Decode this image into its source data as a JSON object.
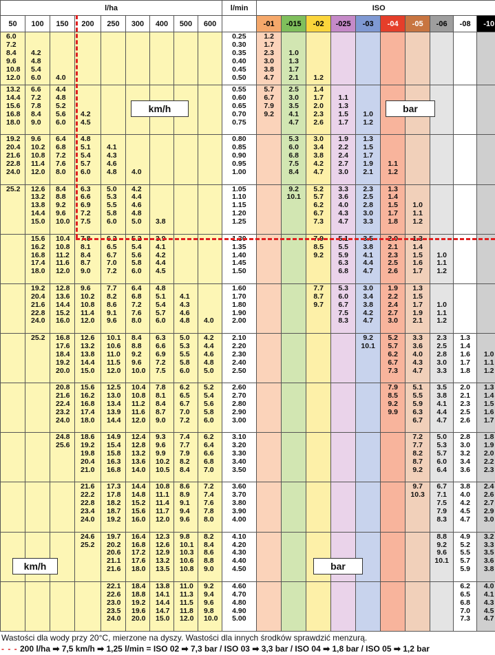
{
  "headers": {
    "lha_title": "l/ha",
    "lmin_title": "l/min",
    "iso_title": "ISO"
  },
  "lha_cols": [
    "50",
    "100",
    "150",
    "200",
    "250",
    "300",
    "400",
    "500",
    "600"
  ],
  "iso_cols": [
    "-01",
    "-015",
    "-02",
    "-025",
    "-03",
    "-04",
    "-05",
    "-06",
    "-08",
    "-10"
  ],
  "groups": [
    {
      "kmh": [
        [
          "6.0",
          "7.2",
          "8.4",
          "9.6",
          "10.8",
          "12.0"
        ],
        [
          "",
          "",
          "4.2",
          "4.8",
          "5.4",
          "6.0"
        ],
        [
          "",
          "",
          "",
          "",
          "",
          "4.0"
        ],
        [],
        [],
        [],
        [],
        [],
        []
      ],
      "lmin": [
        "0.25",
        "0.30",
        "0.35",
        "0.40",
        "0.45",
        "0.50"
      ],
      "iso": [
        [
          "1.2",
          "1.7",
          "2.3",
          "3.0",
          "3.8",
          "4.7"
        ],
        [
          "",
          "",
          "1.0",
          "1.3",
          "1.7",
          "2.1"
        ],
        [
          "",
          "",
          "",
          "",
          "",
          "1.2"
        ],
        [],
        [],
        [],
        [],
        [],
        [],
        []
      ]
    },
    {
      "kmh": [
        [
          "13.2",
          "14.4",
          "15.6",
          "16.8",
          "18.0"
        ],
        [
          "6.6",
          "7.2",
          "7.8",
          "8.4",
          "9.0"
        ],
        [
          "4.4",
          "4.8",
          "5.2",
          "5.6",
          "6.0"
        ],
        [
          "",
          "",
          "",
          "4.2",
          "4.5"
        ],
        [],
        [],
        [],
        [],
        []
      ],
      "lmin": [
        "0.55",
        "0.60",
        "0.65",
        "0.70",
        "0.75"
      ],
      "iso": [
        [
          "5.7",
          "6.7",
          "7.9",
          "9.2",
          ""
        ],
        [
          "2.5",
          "3.0",
          "3.5",
          "4.1",
          "4.7"
        ],
        [
          "1.4",
          "1.7",
          "2.0",
          "2.3",
          "2.6"
        ],
        [
          "",
          "1.1",
          "1.3",
          "1.5",
          "1.7"
        ],
        [
          "",
          "",
          "",
          "1.0",
          "1.2"
        ],
        [],
        [],
        [],
        [],
        []
      ]
    },
    {
      "kmh": [
        [
          "19.2",
          "20.4",
          "21.6",
          "22.8",
          "24.0"
        ],
        [
          "9.6",
          "10.2",
          "10.8",
          "11.4",
          "12.0"
        ],
        [
          "6.4",
          "6.8",
          "7.2",
          "7.6",
          "8.0"
        ],
        [
          "4.8",
          "5.1",
          "5.4",
          "5.7",
          "6.0"
        ],
        [
          "",
          "4.1",
          "4.3",
          "4.6",
          "4.8"
        ],
        [
          "",
          "",
          "",
          "",
          "4.0"
        ],
        [],
        [],
        []
      ],
      "lmin": [
        "0.80",
        "0.85",
        "0.90",
        "0.95",
        "1.00"
      ],
      "iso": [
        [],
        [
          "5.3",
          "6.0",
          "6.8",
          "7.5",
          "8.4"
        ],
        [
          "3.0",
          "3.4",
          "3.8",
          "4.2",
          "4.7"
        ],
        [
          "1.9",
          "2.2",
          "2.4",
          "2.7",
          "3.0"
        ],
        [
          "1.3",
          "1.5",
          "1.7",
          "1.9",
          "2.1"
        ],
        [
          "",
          "",
          "",
          "1.1",
          "1.2"
        ],
        [],
        [],
        [],
        []
      ]
    },
    {
      "kmh": [
        [
          "25.2",
          "",
          "",
          "",
          ""
        ],
        [
          "12.6",
          "13.2",
          "13.8",
          "14.4",
          "15.0"
        ],
        [
          "8.4",
          "8.8",
          "9.2",
          "9.6",
          "10.0"
        ],
        [
          "6.3",
          "6.6",
          "6.9",
          "7.2",
          "7.5"
        ],
        [
          "5.0",
          "5.3",
          "5.5",
          "5.8",
          "6.0"
        ],
        [
          "4.2",
          "4.4",
          "4.6",
          "4.8",
          "5.0"
        ],
        [
          "",
          "",
          "",
          "",
          "3.8"
        ],
        [],
        []
      ],
      "lmin": [
        "1.05",
        "1.10",
        "1.15",
        "1.20",
        "1.25"
      ],
      "iso": [
        [],
        [
          "9.2",
          "10.1",
          "",
          "",
          ""
        ],
        [
          "5.2",
          "5.7",
          "6.2",
          "6.7",
          "7.3"
        ],
        [
          "3.3",
          "3.6",
          "4.0",
          "4.3",
          "4.7"
        ],
        [
          "2.3",
          "2.5",
          "2.8",
          "3.0",
          "3.3"
        ],
        [
          "1.3",
          "1.4",
          "1.5",
          "1.7",
          "1.8"
        ],
        [
          "",
          "",
          "1.0",
          "1.1",
          "1.2"
        ],
        [],
        [],
        []
      ]
    },
    {
      "kmh": [
        [],
        [
          "15.6",
          "16.2",
          "16.8",
          "17.4",
          "18.0"
        ],
        [
          "10.4",
          "10.8",
          "11.2",
          "11.6",
          "12.0"
        ],
        [
          "7.8",
          "8.1",
          "8.4",
          "8.7",
          "9.0"
        ],
        [
          "6.2",
          "6.5",
          "6.7",
          "7.0",
          "7.2"
        ],
        [
          "5.2",
          "5.4",
          "5.6",
          "5.8",
          "6.0"
        ],
        [
          "3.9",
          "4.1",
          "4.2",
          "4.4",
          "4.5"
        ],
        [],
        []
      ],
      "lmin": [
        "1.30",
        "1.35",
        "1.40",
        "1.45",
        "1.50"
      ],
      "iso": [
        [],
        [],
        [
          "7.9",
          "8.5",
          "9.2",
          "",
          ""
        ],
        [
          "5.1",
          "5.5",
          "5.9",
          "6.3",
          "6.8"
        ],
        [
          "3.5",
          "3.8",
          "4.1",
          "4.4",
          "4.7"
        ],
        [
          "2.0",
          "2.1",
          "2.3",
          "2.5",
          "2.6"
        ],
        [
          "1.3",
          "1.4",
          "1.5",
          "1.6",
          "1.7"
        ],
        [
          "",
          "",
          "1.0",
          "1.1",
          "1.2"
        ],
        [],
        []
      ]
    },
    {
      "kmh": [
        [],
        [
          "19.2",
          "20.4",
          "21.6",
          "22.8",
          "24.0"
        ],
        [
          "12.8",
          "13.6",
          "14.4",
          "15.2",
          "16.0"
        ],
        [
          "9.6",
          "10.2",
          "10.8",
          "11.4",
          "12.0"
        ],
        [
          "7.7",
          "8.2",
          "8.6",
          "9.1",
          "9.6"
        ],
        [
          "6.4",
          "6.8",
          "7.2",
          "7.6",
          "8.0"
        ],
        [
          "4.8",
          "5.1",
          "5.4",
          "5.7",
          "6.0"
        ],
        [
          "",
          "4.1",
          "4.3",
          "4.6",
          "4.8"
        ],
        [
          "",
          "",
          "",
          "",
          "4.0"
        ]
      ],
      "lmin": [
        "1.60",
        "1.70",
        "1.80",
        "1.90",
        "2.00"
      ],
      "iso": [
        [],
        [],
        [
          "7.7",
          "8.7",
          "9.7",
          "",
          ""
        ],
        [
          "5.3",
          "6.0",
          "6.7",
          "7.5",
          "8.3"
        ],
        [
          "3.0",
          "3.4",
          "3.8",
          "4.2",
          "4.7"
        ],
        [
          "1.9",
          "2.2",
          "2.4",
          "2.7",
          "3.0"
        ],
        [
          "1.3",
          "1.5",
          "1.7",
          "1.9",
          "2.1"
        ],
        [
          "",
          "",
          "1.0",
          "1.1",
          "1.2"
        ],
        [],
        []
      ]
    },
    {
      "kmh": [
        [],
        [
          "25.2",
          "",
          "",
          "",
          ""
        ],
        [
          "16.8",
          "17.6",
          "18.4",
          "19.2",
          "20.0"
        ],
        [
          "12.6",
          "13.2",
          "13.8",
          "14.4",
          "15.0"
        ],
        [
          "10.1",
          "10.6",
          "11.0",
          "11.5",
          "12.0"
        ],
        [
          "8.4",
          "8.8",
          "9.2",
          "9.6",
          "10.0"
        ],
        [
          "6.3",
          "6.6",
          "6.9",
          "7.2",
          "7.5"
        ],
        [
          "5.0",
          "5.3",
          "5.5",
          "5.8",
          "6.0"
        ],
        [
          "4.2",
          "4.4",
          "4.6",
          "4.8",
          "5.0"
        ]
      ],
      "lmin": [
        "2.10",
        "2.20",
        "2.30",
        "2.40",
        "2.50"
      ],
      "iso": [
        [],
        [],
        [],
        [],
        [
          "9.2",
          "10.1",
          "",
          "",
          ""
        ],
        [
          "5.2",
          "5.7",
          "6.2",
          "6.7",
          "7.3"
        ],
        [
          "3.3",
          "3.6",
          "4.0",
          "4.3",
          "4.7"
        ],
        [
          "2.3",
          "2.5",
          "2.8",
          "3.0",
          "3.3"
        ],
        [
          "1.3",
          "1.4",
          "1.6",
          "1.7",
          "1.8"
        ],
        [
          "",
          "",
          "1.0",
          "1.1",
          "1.2"
        ]
      ]
    },
    {
      "kmh": [
        [],
        [],
        [
          "20.8",
          "21.6",
          "22.4",
          "23.2",
          "24.0"
        ],
        [
          "15.6",
          "16.2",
          "16.8",
          "17.4",
          "18.0"
        ],
        [
          "12.5",
          "13.0",
          "13.4",
          "13.9",
          "14.4"
        ],
        [
          "10.4",
          "10.8",
          "11.2",
          "11.6",
          "12.0"
        ],
        [
          "7.8",
          "8.1",
          "8.4",
          "8.7",
          "9.0"
        ],
        [
          "6.2",
          "6.5",
          "6.7",
          "7.0",
          "7.2"
        ],
        [
          "5.2",
          "5.4",
          "5.6",
          "5.8",
          "6.0"
        ]
      ],
      "lmin": [
        "2.60",
        "2.70",
        "2.80",
        "2.90",
        "3.00"
      ],
      "iso": [
        [],
        [],
        [],
        [],
        [],
        [
          "7.9",
          "8.5",
          "9.2",
          "9.9",
          ""
        ],
        [
          "5.1",
          "5.5",
          "5.9",
          "6.3",
          "6.7"
        ],
        [
          "3.5",
          "3.8",
          "4.1",
          "4.4",
          "4.7"
        ],
        [
          "2.0",
          "2.1",
          "2.3",
          "2.5",
          "2.6"
        ],
        [
          "1.3",
          "1.4",
          "1.5",
          "1.6",
          "1.7"
        ]
      ]
    },
    {
      "kmh": [
        [],
        [],
        [
          "24.8",
          "25.6",
          "",
          "",
          ""
        ],
        [
          "18.6",
          "19.2",
          "19.8",
          "20.4",
          "21.0"
        ],
        [
          "14.9",
          "15.4",
          "15.8",
          "16.3",
          "16.8"
        ],
        [
          "12.4",
          "12.8",
          "13.2",
          "13.6",
          "14.0"
        ],
        [
          "9.3",
          "9.6",
          "9.9",
          "10.2",
          "10.5"
        ],
        [
          "7.4",
          "7.7",
          "7.9",
          "8.2",
          "8.4"
        ],
        [
          "6.2",
          "6.4",
          "6.6",
          "6.8",
          "7.0"
        ]
      ],
      "lmin": [
        "3.10",
        "3.20",
        "3.30",
        "3.40",
        "3.50"
      ],
      "iso": [
        [],
        [],
        [],
        [],
        [],
        [],
        [
          "7.2",
          "7.7",
          "8.2",
          "8.7",
          "9.2"
        ],
        [
          "5.0",
          "5.3",
          "5.7",
          "6.0",
          "6.4"
        ],
        [
          "2.8",
          "3.0",
          "3.2",
          "3.4",
          "3.6"
        ],
        [
          "1.8",
          "1.9",
          "2.0",
          "2.2",
          "2.3"
        ]
      ]
    },
    {
      "kmh": [
        [],
        [],
        [],
        [
          "21.6",
          "22.2",
          "22.8",
          "23.4",
          "24.0"
        ],
        [
          "17.3",
          "17.8",
          "18.2",
          "18.7",
          "19.2"
        ],
        [
          "14.4",
          "14.8",
          "15.2",
          "15.6",
          "16.0"
        ],
        [
          "10.8",
          "11.1",
          "11.4",
          "11.7",
          "12.0"
        ],
        [
          "8.6",
          "8.9",
          "9.1",
          "9.4",
          "9.6"
        ],
        [
          "7.2",
          "7.4",
          "7.6",
          "7.8",
          "8.0"
        ]
      ],
      "lmin": [
        "3.60",
        "3.70",
        "3.80",
        "3.90",
        "4.00"
      ],
      "iso": [
        [],
        [],
        [],
        [],
        [],
        [],
        [
          "9.7",
          "10.3",
          "",
          "",
          ""
        ],
        [
          "6.7",
          "7.1",
          "7.5",
          "7.9",
          "8.3"
        ],
        [
          "3.8",
          "4.0",
          "4.2",
          "4.5",
          "4.7"
        ],
        [
          "2.4",
          "2.6",
          "2.7",
          "2.9",
          "3.0"
        ]
      ]
    },
    {
      "kmh": [
        [],
        [],
        [],
        [
          "24.6",
          "25.2",
          "",
          "",
          ""
        ],
        [
          "19.7",
          "20.2",
          "20.6",
          "21.1",
          "21.6"
        ],
        [
          "16.4",
          "16.8",
          "17.2",
          "17.6",
          "18.0"
        ],
        [
          "12.3",
          "12.6",
          "12.9",
          "13.2",
          "13.5"
        ],
        [
          "9.8",
          "10.1",
          "10.3",
          "10.6",
          "10.8"
        ],
        [
          "8.2",
          "8.4",
          "8.6",
          "8.8",
          "9.0"
        ]
      ],
      "lmin": [
        "4.10",
        "4.20",
        "4.30",
        "4.40",
        "4.50"
      ],
      "iso": [
        [],
        [],
        [],
        [],
        [],
        [],
        [],
        [
          "8.8",
          "9.2",
          "9.6",
          "10.1",
          ""
        ],
        [
          "4.9",
          "5.2",
          "5.5",
          "5.7",
          "5.9"
        ],
        [
          "3.2",
          "3.3",
          "3.5",
          "3.6",
          "3.8"
        ]
      ]
    },
    {
      "kmh": [
        [],
        [],
        [],
        [],
        [
          "22.1",
          "22.6",
          "23.0",
          "23.5",
          "24.0"
        ],
        [
          "18.4",
          "18.8",
          "19.2",
          "19.6",
          "20.0"
        ],
        [
          "13.8",
          "14.1",
          "14.4",
          "14.7",
          "15.0"
        ],
        [
          "11.0",
          "11.3",
          "11.5",
          "11.8",
          "12.0"
        ],
        [
          "9.2",
          "9.4",
          "9.6",
          "9.8",
          "10.0"
        ]
      ],
      "lmin": [
        "4.60",
        "4.70",
        "4.80",
        "4.90",
        "5.00"
      ],
      "iso": [
        [],
        [],
        [],
        [],
        [],
        [],
        [],
        [],
        [
          "6.2",
          "6.5",
          "6.8",
          "7.0",
          "7.3"
        ],
        [
          "4.0",
          "4.1",
          "4.3",
          "4.5",
          "4.7"
        ]
      ]
    }
  ],
  "labels": {
    "kmh_top": "km/h",
    "bar_top": "bar",
    "kmh_bottom": "km/h",
    "bar_bottom": "bar"
  },
  "footer": {
    "note": "Wastości dla wody przy 20°C, mierzone na dyszy. Wastości dla innych środków sprawdzić menzurą.",
    "dash": "- - -",
    "example": "200 l/ha ➡ 7,5 km/h ➡ 1,25 l/min = ISO 02 ➡ 7,3 bar / ISO 03 ➡ 3,3 bar / ISO 04 ➡ 1,8 bar / ISO 05 ➡ 1,2 bar"
  }
}
